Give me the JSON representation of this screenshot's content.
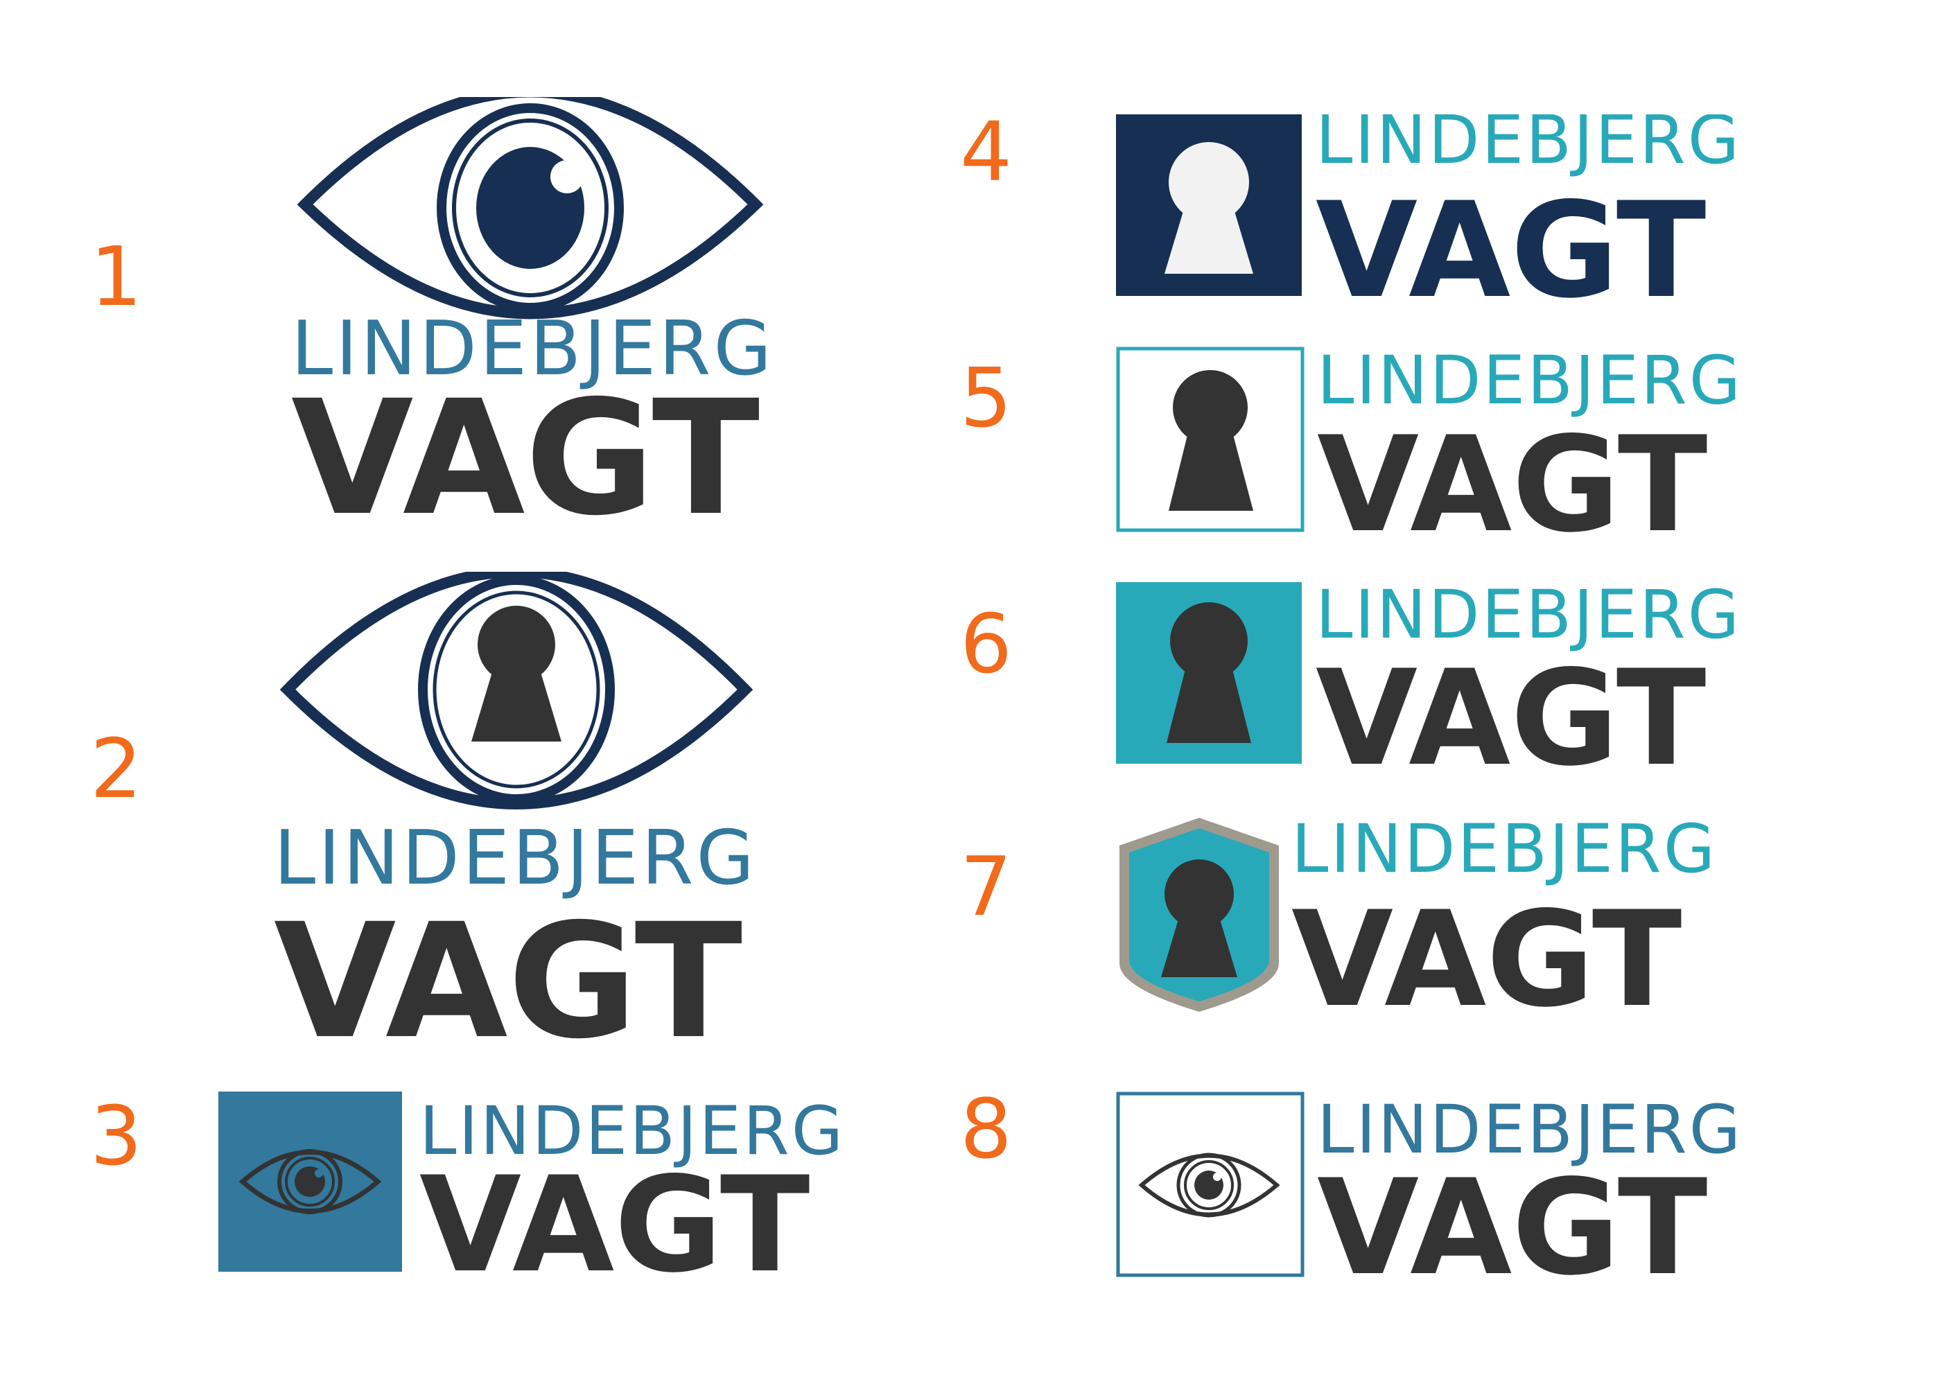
{
  "colors": {
    "navy": "#172f52",
    "steel_blue": "#33789d",
    "teal": "#28a9b9",
    "dark_text": "#333333",
    "orange": "#f26a1b",
    "light_grey": "#f2f2f2",
    "shield_rim": "#9e9a8e"
  },
  "icons": [
    "eye-icon",
    "keyhole-icon",
    "shield-icon"
  ],
  "variants": [
    {
      "number": "1",
      "line1": "LINDEBJERG",
      "line2": "VAGT"
    },
    {
      "number": "2",
      "line1": "LINDEBJERG",
      "line2": "VAGT"
    },
    {
      "number": "3",
      "line1": "LINDEBJERG",
      "line2": "VAGT"
    },
    {
      "number": "4",
      "line1": "LINDEBJERG",
      "line2": "VAGT"
    },
    {
      "number": "5",
      "line1": "LINDEBJERG",
      "line2": "VAGT"
    },
    {
      "number": "6",
      "line1": "LINDEBJERG",
      "line2": "VAGT"
    },
    {
      "number": "7",
      "line1": "LINDEBJERG",
      "line2": "VAGT"
    },
    {
      "number": "8",
      "line1": "LINDEBJERG",
      "line2": "VAGT"
    }
  ]
}
